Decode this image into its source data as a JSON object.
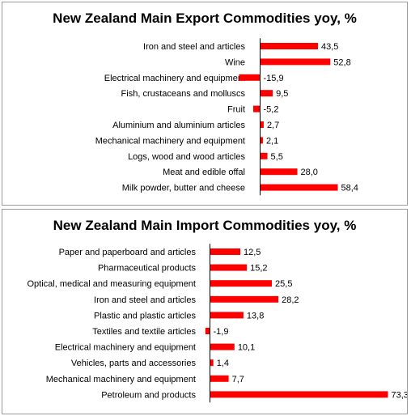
{
  "chart_data": [
    {
      "type": "bar",
      "orientation": "horizontal",
      "title": "New Zealand Main Export Commodities yoy, %",
      "categories": [
        "Iron and steel and articles",
        "Wine",
        "Electrical machinery and equipment",
        "Fish, crustaceans and molluscs",
        "Fruit",
        "Aluminium and aluminium articles",
        "Mechanical machinery and equipment",
        "Logs, wood and wood articles",
        "Meat and edible offal",
        "Milk powder, butter and cheese"
      ],
      "values": [
        43.5,
        52.8,
        -15.9,
        9.5,
        -5.2,
        2.7,
        2.1,
        5.5,
        28.0,
        58.4
      ],
      "value_labels": [
        "43,5",
        "52,8",
        "-15,9",
        "9,5",
        "-5,2",
        "2,7",
        "2,1",
        "5,5",
        "28,0",
        "58,4"
      ],
      "bar_color": "#ff0000",
      "grid": false,
      "legend": "none"
    },
    {
      "type": "bar",
      "orientation": "horizontal",
      "title": "New Zealand Main Import Commodities yoy, %",
      "categories": [
        "Paper and paperboard and articles",
        "Pharmaceutical products",
        "Optical, medical and measuring equipment",
        "Iron and steel and articles",
        "Plastic and plastic articles",
        "Textiles and textile articles",
        "Electrical machinery and equipment",
        "Vehicles, parts and accessories",
        "Mechanical machinery and equipment",
        "Petroleum and products"
      ],
      "values": [
        12.5,
        15.2,
        25.5,
        28.2,
        13.8,
        -1.9,
        10.1,
        1.4,
        7.7,
        73.3
      ],
      "value_labels": [
        "12,5",
        "15,2",
        "25,5",
        "28,2",
        "13,8",
        "-1,9",
        "10,1",
        "1,4",
        "7,7",
        "73,3"
      ],
      "bar_color": "#ff0000",
      "grid": false,
      "legend": "none"
    }
  ]
}
